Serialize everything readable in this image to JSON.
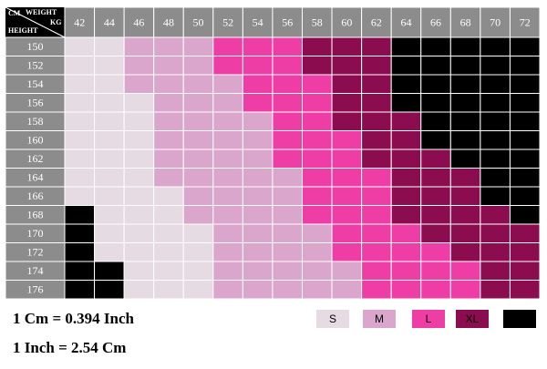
{
  "header": {
    "weight": "WEIGHT",
    "weight_unit": "KG",
    "height_unit": "CM",
    "height": "HEIGHT"
  },
  "weights": [
    "42",
    "44",
    "46",
    "48",
    "50",
    "52",
    "54",
    "56",
    "58",
    "60",
    "62",
    "64",
    "66",
    "68",
    "70",
    "72"
  ],
  "heights": [
    "150",
    "152",
    "154",
    "156",
    "158",
    "160",
    "162",
    "164",
    "166",
    "168",
    "170",
    "172",
    "174",
    "176"
  ],
  "legend": {
    "labels": [
      "S",
      "M",
      "L",
      "XL"
    ],
    "colors": [
      "#e6dbe3",
      "#dba6cc",
      "#ee3ea6",
      "#8b0d50",
      "#000000"
    ]
  },
  "grid": [
    [
      0,
      0,
      1,
      1,
      1,
      2,
      2,
      2,
      3,
      3,
      3,
      4,
      4,
      4,
      4,
      4
    ],
    [
      0,
      0,
      1,
      1,
      1,
      2,
      2,
      2,
      3,
      3,
      3,
      4,
      4,
      4,
      4,
      4
    ],
    [
      0,
      0,
      1,
      1,
      1,
      1,
      2,
      2,
      2,
      3,
      3,
      4,
      4,
      4,
      4,
      4
    ],
    [
      0,
      0,
      0,
      1,
      1,
      1,
      2,
      2,
      2,
      3,
      3,
      4,
      4,
      4,
      4,
      4
    ],
    [
      0,
      0,
      0,
      1,
      1,
      1,
      1,
      2,
      2,
      3,
      3,
      3,
      4,
      4,
      4,
      4
    ],
    [
      0,
      0,
      0,
      1,
      1,
      1,
      1,
      2,
      2,
      2,
      3,
      3,
      4,
      4,
      4,
      4
    ],
    [
      0,
      0,
      0,
      1,
      1,
      1,
      1,
      2,
      2,
      2,
      3,
      3,
      3,
      4,
      4,
      4
    ],
    [
      0,
      0,
      0,
      1,
      1,
      1,
      1,
      1,
      2,
      2,
      2,
      3,
      3,
      3,
      4,
      4
    ],
    [
      0,
      0,
      0,
      0,
      1,
      1,
      1,
      1,
      2,
      2,
      2,
      3,
      3,
      3,
      4,
      4
    ],
    [
      4,
      0,
      0,
      0,
      1,
      1,
      1,
      1,
      2,
      2,
      2,
      3,
      3,
      3,
      3,
      4
    ],
    [
      4,
      0,
      0,
      0,
      0,
      1,
      1,
      1,
      1,
      2,
      2,
      2,
      3,
      3,
      3,
      3
    ],
    [
      4,
      0,
      0,
      0,
      0,
      1,
      1,
      1,
      1,
      2,
      2,
      2,
      2,
      3,
      3,
      3
    ],
    [
      4,
      4,
      0,
      0,
      0,
      1,
      1,
      1,
      1,
      1,
      2,
      2,
      2,
      2,
      3,
      3
    ],
    [
      4,
      4,
      0,
      0,
      0,
      1,
      1,
      1,
      1,
      1,
      2,
      2,
      2,
      2,
      3,
      3
    ]
  ],
  "notes": [
    "1 Cm = 0.394 Inch",
    "1 Inch = 2.54 Cm"
  ]
}
